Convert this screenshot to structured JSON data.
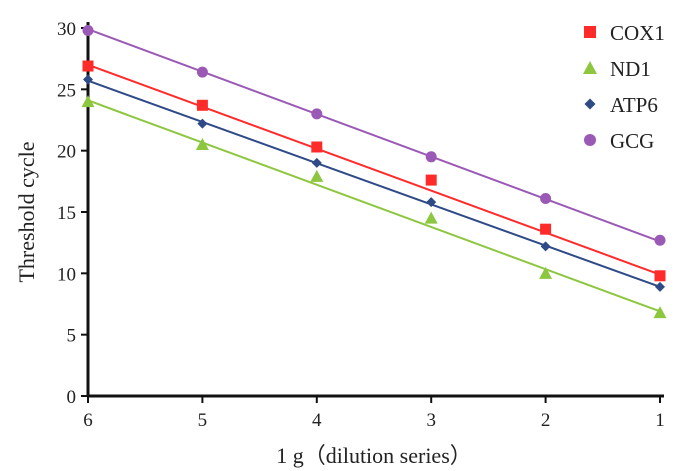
{
  "chart_data": {
    "type": "scatter",
    "xlabel": "1 g（dilution series）",
    "ylabel": "Threshold cycle",
    "x": [
      6,
      5,
      4,
      3,
      2,
      1
    ],
    "x_reversed": true,
    "xlim": [
      1,
      6
    ],
    "ylim": [
      0,
      30
    ],
    "xticks": [
      6,
      5,
      4,
      3,
      2,
      1
    ],
    "yticks": [
      0,
      5,
      10,
      15,
      20,
      25,
      30
    ],
    "grid": false,
    "legend_position": "top-right",
    "trendlines": true,
    "series": [
      {
        "name": "COX1",
        "marker": "square",
        "color": "#ff2a2a",
        "values": [
          26.9,
          23.7,
          20.3,
          17.6,
          13.6,
          9.8
        ],
        "fit": [
          27.0,
          9.9
        ]
      },
      {
        "name": "ND1",
        "marker": "triangle",
        "color": "#8dc63f",
        "values": [
          24.0,
          20.5,
          17.9,
          14.5,
          10.0,
          6.8
        ],
        "fit": [
          24.1,
          6.9
        ]
      },
      {
        "name": "ATP6",
        "marker": "diamond",
        "color": "#2e4a87",
        "values": [
          25.8,
          22.2,
          19.0,
          15.8,
          12.2,
          8.9
        ],
        "fit": [
          25.7,
          8.9
        ]
      },
      {
        "name": "GCG",
        "marker": "circle",
        "color": "#9b59b6",
        "values": [
          29.8,
          26.4,
          23.0,
          19.5,
          16.1,
          12.7
        ],
        "fit": [
          29.9,
          12.6
        ]
      }
    ]
  }
}
